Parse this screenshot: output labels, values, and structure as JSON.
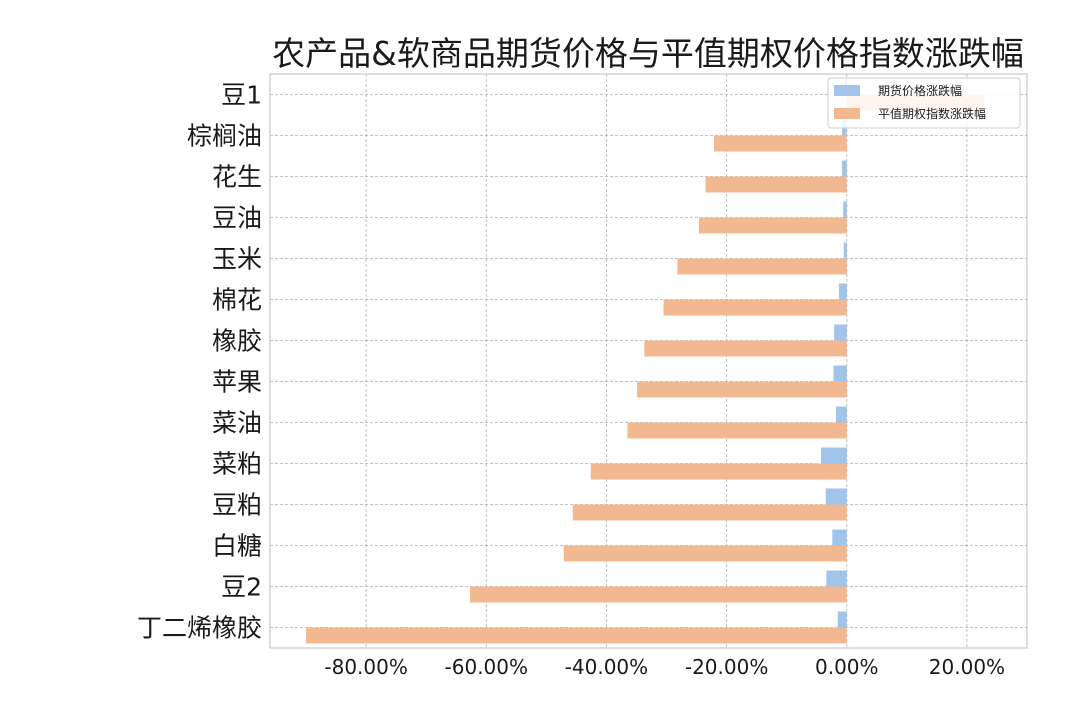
{
  "chart_data": {
    "type": "bar",
    "orientation": "horizontal",
    "title": "农产品&软商品期货价格与平值期权价格指数涨跌幅",
    "xlabel": "",
    "ylabel": "",
    "categories": [
      "豆1",
      "棕榈油",
      "花生",
      "豆油",
      "玉米",
      "棉花",
      "橡胶",
      "苹果",
      "菜油",
      "菜粕",
      "豆粕",
      "白糖",
      "豆2",
      "丁二烯橡胶"
    ],
    "series": [
      {
        "name": "期货价格涨跌幅",
        "color": "#a1c4ea",
        "values": [
          -0.3,
          -0.8,
          -0.8,
          -0.6,
          -0.5,
          -1.3,
          -2.1,
          -2.2,
          -1.8,
          -4.3,
          -3.5,
          -2.4,
          -3.4,
          -1.5
        ]
      },
      {
        "name": "平值期权指数涨跌幅",
        "color": "#f2b890",
        "values": [
          22.9,
          -22.1,
          -23.5,
          -24.6,
          -28.2,
          -30.5,
          -33.7,
          -34.9,
          -36.5,
          -42.6,
          -45.6,
          -47.1,
          -62.7,
          -90.0
        ]
      }
    ],
    "xlim": [
      -96,
      30
    ],
    "xticks": [
      -80,
      -60,
      -40,
      -20,
      0,
      20
    ],
    "xtick_labels": [
      "-80.00%",
      "-60.00%",
      "-40.00%",
      "-20.00%",
      "0.00%",
      "20.00%"
    ],
    "grid": true,
    "legend_position": "top-right"
  }
}
